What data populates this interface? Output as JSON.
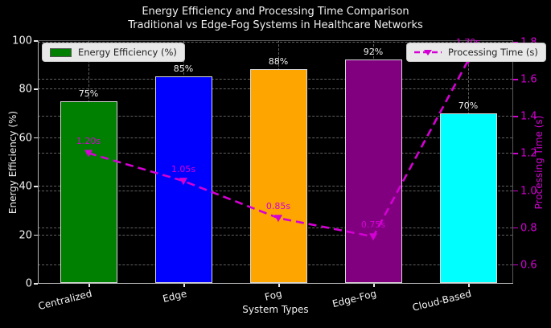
{
  "figure": {
    "title_line1": "Energy Efficiency and Processing Time Comparison",
    "title_line2": "Traditional vs Edge-Fog Systems in Healthcare Networks",
    "background": "#000000",
    "text_color": "#f0f0f0"
  },
  "legend": {
    "energy": {
      "label": "Energy Efficiency (%)",
      "swatch_color": "#008000"
    },
    "processing": {
      "label": "Processing Time (s)",
      "line_color": "#d400d4",
      "marker": "triangle-down"
    }
  },
  "chart_data": {
    "type": "bar",
    "categories": [
      "Centralized",
      "Edge",
      "Fog",
      "Edge-Fog",
      "Cloud-Based"
    ],
    "series": [
      {
        "name": "Energy Efficiency (%)",
        "type": "bar",
        "axis": "left",
        "values": [
          75,
          85,
          88,
          92,
          70
        ],
        "value_labels": [
          "75%",
          "85%",
          "88%",
          "92%",
          "70%"
        ],
        "bar_colors": [
          "#008000",
          "#0000ff",
          "#ffa500",
          "#800080",
          "#00ffff"
        ]
      },
      {
        "name": "Processing Time (s)",
        "type": "line",
        "axis": "right",
        "values": [
          1.2,
          1.05,
          0.85,
          0.75,
          1.7
        ],
        "value_labels": [
          "1.20s",
          "1.05s",
          "0.85s",
          "0.75s",
          "1.70s"
        ],
        "color": "#d400d4",
        "linestyle": "dashed",
        "marker": "triangle-down"
      }
    ],
    "xlabel": "System Types",
    "ylabel_left": "Energy Efficiency (%)",
    "ylabel_right": "Processing Time (s)",
    "ylim_left": [
      0,
      100
    ],
    "ylim_right": [
      0.5,
      1.8
    ],
    "yticks_left": [
      "0",
      "20",
      "40",
      "60",
      "80",
      "100"
    ],
    "yticks_right": [
      "0.6",
      "0.8",
      "1.0",
      "1.2",
      "1.4",
      "1.6",
      "1.8"
    ],
    "grid": "dashed",
    "legend_positions": [
      "upper left",
      "upper right"
    ]
  }
}
